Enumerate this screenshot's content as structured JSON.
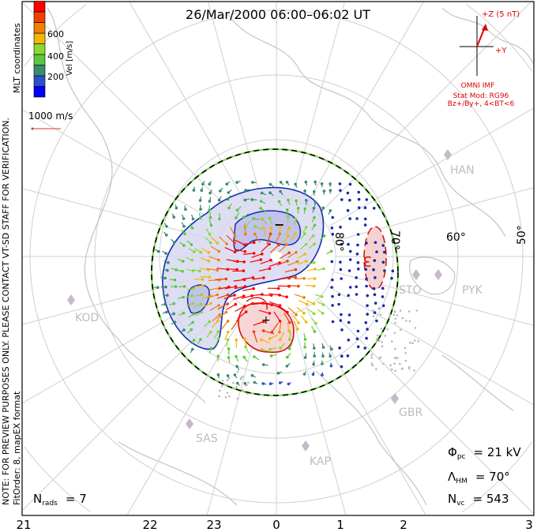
{
  "title": "26/Mar/2000 06:00–06:02 UT",
  "side_note": "NOTE: FOR PREVIEW PURPOSES ONLY. PLEASE CONTACT VT-SD STAFF FOR VERIFICATION.",
  "coord_label": "MLT coordinates",
  "fit_label": "FitOrder: 8, mapEX format",
  "colorbar": {
    "label": "Vel [m/s]",
    "ticks": [
      "200",
      "400",
      "600"
    ],
    "colors": [
      "#0000ff",
      "#2a4fcf",
      "#3a8a70",
      "#5ac83a",
      "#8ad830",
      "#f0b800",
      "#f08000",
      "#f04000",
      "#ff0000"
    ]
  },
  "scale_vector": {
    "label": "1000 m/s",
    "color": "#e03030"
  },
  "imf": {
    "z_label": "+Z (5 nT)",
    "y_label": "+Y",
    "source": "OMNI IMF",
    "stat_mod": "Stat Mod: RG96",
    "condition": "Bz+/By+, 4<BT<6",
    "color": "#e00000"
  },
  "latitude_labels": [
    "80°",
    "70°",
    "60°",
    "50°"
  ],
  "contour_labels": {
    "negative": "−",
    "positive": "+",
    "value": "3"
  },
  "radars": [
    "HAN",
    "PYK",
    "STO",
    "KOD",
    "SAS",
    "KAP",
    "GBR"
  ],
  "stats": {
    "phi_symbol": "Φ",
    "phi_sub": "pc",
    "phi_value": "= 21 kV",
    "lambda_symbol": "Λ",
    "lambda_sub": "HM",
    "lambda_value": "= 70°",
    "nvc_symbol": "N",
    "nvc_sub": "vc",
    "nvc_value": "= 543",
    "nrads_symbol": "N",
    "nrads_sub": "rads",
    "nrads_value": "= 7"
  },
  "mlt_axis": [
    "21",
    "22",
    "23",
    "0",
    "1",
    "2",
    "3"
  ]
}
